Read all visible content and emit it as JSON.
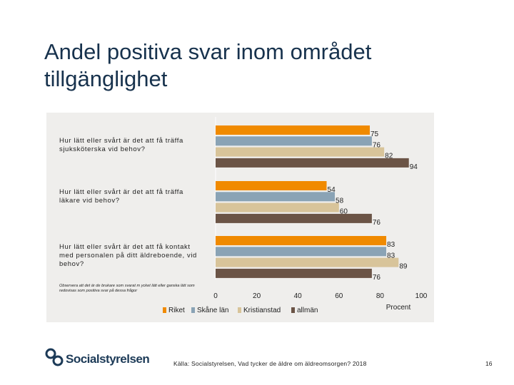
{
  "slide": {
    "title": "Andel positiva svar inom området tillgänglighet",
    "note": "Observera att det är de brukare som svarat m ycket lätt eller ganska lätt som redovisas som positiva svar på dessa frågor",
    "source": "Källa: Socialstyrelsen, Vad tycker de äldre om äldreomsorgen? 2018",
    "page_number": "16",
    "logo_text": "Socialstyrelsen"
  },
  "chart_data": {
    "type": "bar",
    "orientation": "horizontal",
    "categories": [
      "Hur lätt eller svårt är det att få träffa sjuksköterska vid behov?",
      "Hur lätt eller svårt är det att få träffa läkare vid behov?",
      "Hur lätt eller svårt är det att få kontakt med personalen på ditt äldreboende, vid behov?"
    ],
    "series": [
      {
        "name": "Riket",
        "color": "#f08a00",
        "values": [
          75,
          54,
          83
        ]
      },
      {
        "name": "Skåne län",
        "color": "#8aa3b5",
        "values": [
          76,
          58,
          83
        ]
      },
      {
        "name": "Kristianstad",
        "color": "#d8c49a",
        "values": [
          82,
          60,
          89
        ]
      },
      {
        "name": "allmän",
        "color": "#6b5446",
        "values": [
          94,
          76,
          76
        ]
      }
    ],
    "xlim": [
      0,
      100
    ],
    "xticks": [
      "0",
      "20",
      "40",
      "60",
      "80",
      "100"
    ],
    "xlabel": "Procent",
    "legend_position": "bottom"
  }
}
